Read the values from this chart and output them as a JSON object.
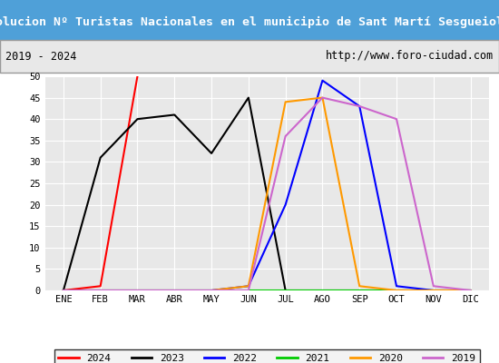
{
  "title": "Evolucion Nº Turistas Nacionales en el municipio de Sant Martí Sesgueioles",
  "subtitle_left": "2019 - 2024",
  "subtitle_right": "http://www.foro-ciudad.com",
  "title_bg_color": "#4fa0d8",
  "title_text_color": "#ffffff",
  "subtitle_bg_color": "#e8e8e8",
  "plot_bg_color": "#e8e8e8",
  "months": [
    "ENE",
    "FEB",
    "MAR",
    "ABR",
    "MAY",
    "JUN",
    "JUL",
    "AGO",
    "SEP",
    "OCT",
    "NOV",
    "DIC"
  ],
  "ylim": [
    0,
    50
  ],
  "yticks": [
    0,
    5,
    10,
    15,
    20,
    25,
    30,
    35,
    40,
    45,
    50
  ],
  "series": {
    "2024": {
      "color": "#ff0000",
      "values": [
        0,
        1,
        50,
        null,
        null,
        null,
        null,
        null,
        null,
        null,
        null,
        null
      ]
    },
    "2023": {
      "color": "#000000",
      "values": [
        0,
        31,
        40,
        41,
        32,
        45,
        0,
        0,
        0,
        0,
        0,
        0
      ]
    },
    "2022": {
      "color": "#0000ff",
      "values": [
        0,
        0,
        0,
        0,
        0,
        1,
        20,
        49,
        43,
        1,
        0,
        0
      ]
    },
    "2021": {
      "color": "#00cc00",
      "values": [
        0,
        0,
        0,
        0,
        0,
        0,
        0,
        0,
        0,
        0,
        0,
        0
      ]
    },
    "2020": {
      "color": "#ff9900",
      "values": [
        0,
        0,
        0,
        0,
        0,
        1,
        44,
        45,
        1,
        0,
        0,
        0
      ]
    },
    "2019": {
      "color": "#cc66cc",
      "values": [
        0,
        0,
        0,
        0,
        0,
        0,
        36,
        45,
        43,
        40,
        1,
        0
      ]
    }
  },
  "legend_order": [
    "2024",
    "2023",
    "2022",
    "2021",
    "2020",
    "2019"
  ]
}
